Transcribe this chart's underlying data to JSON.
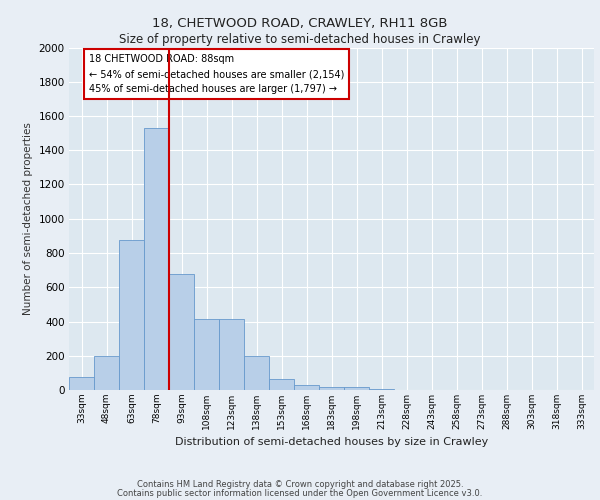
{
  "title_line1": "18, CHETWOOD ROAD, CRAWLEY, RH11 8GB",
  "title_line2": "Size of property relative to semi-detached houses in Crawley",
  "xlabel": "Distribution of semi-detached houses by size in Crawley",
  "ylabel": "Number of semi-detached properties",
  "footer_line1": "Contains HM Land Registry data © Crown copyright and database right 2025.",
  "footer_line2": "Contains public sector information licensed under the Open Government Licence v3.0.",
  "annotation_line1": "18 CHETWOOD ROAD: 88sqm",
  "annotation_line2": "← 54% of semi-detached houses are smaller (2,154)",
  "annotation_line3": "45% of semi-detached houses are larger (1,797) →",
  "bin_labels": [
    "33sqm",
    "48sqm",
    "63sqm",
    "78sqm",
    "93sqm",
    "108sqm",
    "123sqm",
    "138sqm",
    "153sqm",
    "168sqm",
    "183sqm",
    "198sqm",
    "213sqm",
    "228sqm",
    "243sqm",
    "258sqm",
    "273sqm",
    "288sqm",
    "303sqm",
    "318sqm",
    "333sqm"
  ],
  "bar_values": [
    75,
    200,
    875,
    1530,
    675,
    415,
    415,
    200,
    65,
    30,
    20,
    15,
    5,
    2,
    2,
    1,
    1,
    1,
    0,
    0,
    0
  ],
  "bar_color": "#b8cfe8",
  "bar_edge_color": "#6699cc",
  "red_line_x": 3.5,
  "red_line_color": "#cc0000",
  "background_color": "#dde8f0",
  "fig_background": "#e8eef5",
  "ylim": [
    0,
    2000
  ],
  "yticks": [
    0,
    200,
    400,
    600,
    800,
    1000,
    1200,
    1400,
    1600,
    1800,
    2000
  ],
  "annotation_box_color": "#ffffff",
  "annotation_box_edge": "#cc0000",
  "grid_color": "#ffffff"
}
